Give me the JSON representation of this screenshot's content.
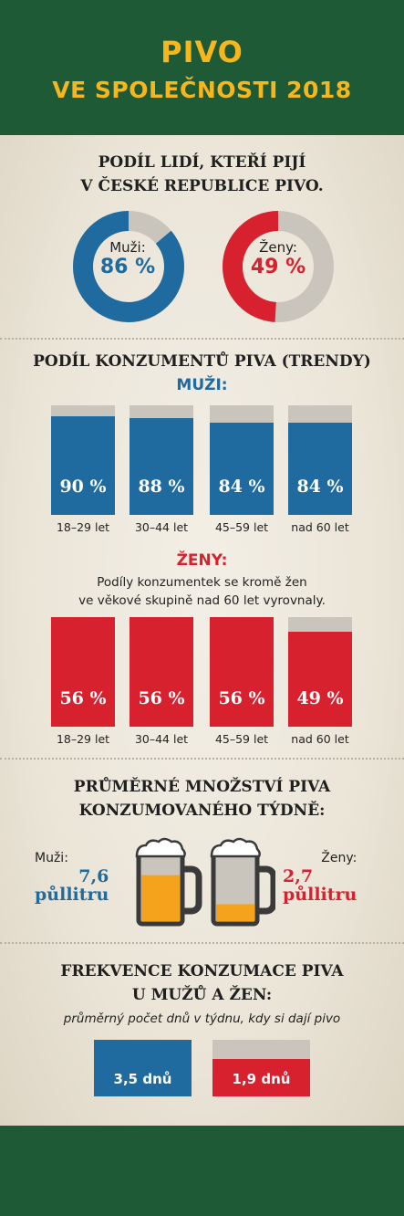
{
  "header": {
    "title_line1": "PIVO",
    "title_line2": "VE SPOLEČNOSTI 2018"
  },
  "colors": {
    "green": "#1d5a35",
    "yellow": "#f5b71d",
    "blue": "#1f6a9e",
    "red": "#d7212f",
    "gray": "#c9c5bd",
    "beer": "#f5a21d"
  },
  "chart_data": [
    {
      "type": "pie",
      "title": "PODÍL LIDÍ, KTEŘÍ PIJÍ\nV ČESKÉ REPUBLICE PIVO.",
      "title_line1": "PODÍL LIDÍ, KTEŘÍ PIJÍ",
      "title_line2": "V ČESKÉ REPUBLICE PIVO.",
      "series": [
        {
          "name": "Muži:",
          "value": 86,
          "label": "86 %"
        },
        {
          "name": "Ženy:",
          "value": 49,
          "label": "49 %"
        }
      ]
    },
    {
      "type": "bar",
      "title": "PODÍL KONZUMENTŮ PIVA (TRENDY)",
      "subtitle": "MUŽI:",
      "categories": [
        "18–29 let",
        "30–44 let",
        "45–59 let",
        "nad 60 let"
      ],
      "values": [
        90,
        88,
        84,
        84
      ],
      "labels": [
        "90 %",
        "88 %",
        "84 %",
        "84 %"
      ],
      "ylim": [
        0,
        100
      ]
    },
    {
      "type": "bar",
      "subtitle": "ŽENY:",
      "note_line1": "Podíly konzumentek se kromě žen",
      "note_line2": "ve věkové skupině nad 60 let vyrovnaly.",
      "categories": [
        "18–29 let",
        "30–44 let",
        "45–59 let",
        "nad 60 let"
      ],
      "values": [
        100,
        100,
        100,
        87
      ],
      "labels": [
        "56 %",
        "56 %",
        "56 %",
        "49 %"
      ],
      "ylim": [
        0,
        100
      ]
    },
    {
      "type": "bar",
      "title_line1": "PRŮMĚRNÉ MNOŽSTVÍ PIVA",
      "title_line2": "KONZUMOVANÉHO TÝDNĚ:",
      "series": [
        {
          "name": "Muži:",
          "value": 7.6,
          "value_text": "7,6",
          "unit": "půllitru",
          "fill": 0.68
        },
        {
          "name": "Ženy:",
          "value": 2.7,
          "value_text": "2,7",
          "unit": "půllitru",
          "fill": 0.25
        }
      ]
    },
    {
      "type": "bar",
      "title_line1": "FREKVENCE KONZUMACE PIVA",
      "title_line2": "U MUŽŮ A ŽEN:",
      "subtitle": "průměrný počet dnů v týdnu, kdy si dají pivo",
      "series": [
        {
          "value": 3.5,
          "label": "3,5 dnů"
        },
        {
          "value": 1.9,
          "label": "1,9 dnů"
        }
      ],
      "ylim": [
        0,
        3.5
      ]
    }
  ]
}
